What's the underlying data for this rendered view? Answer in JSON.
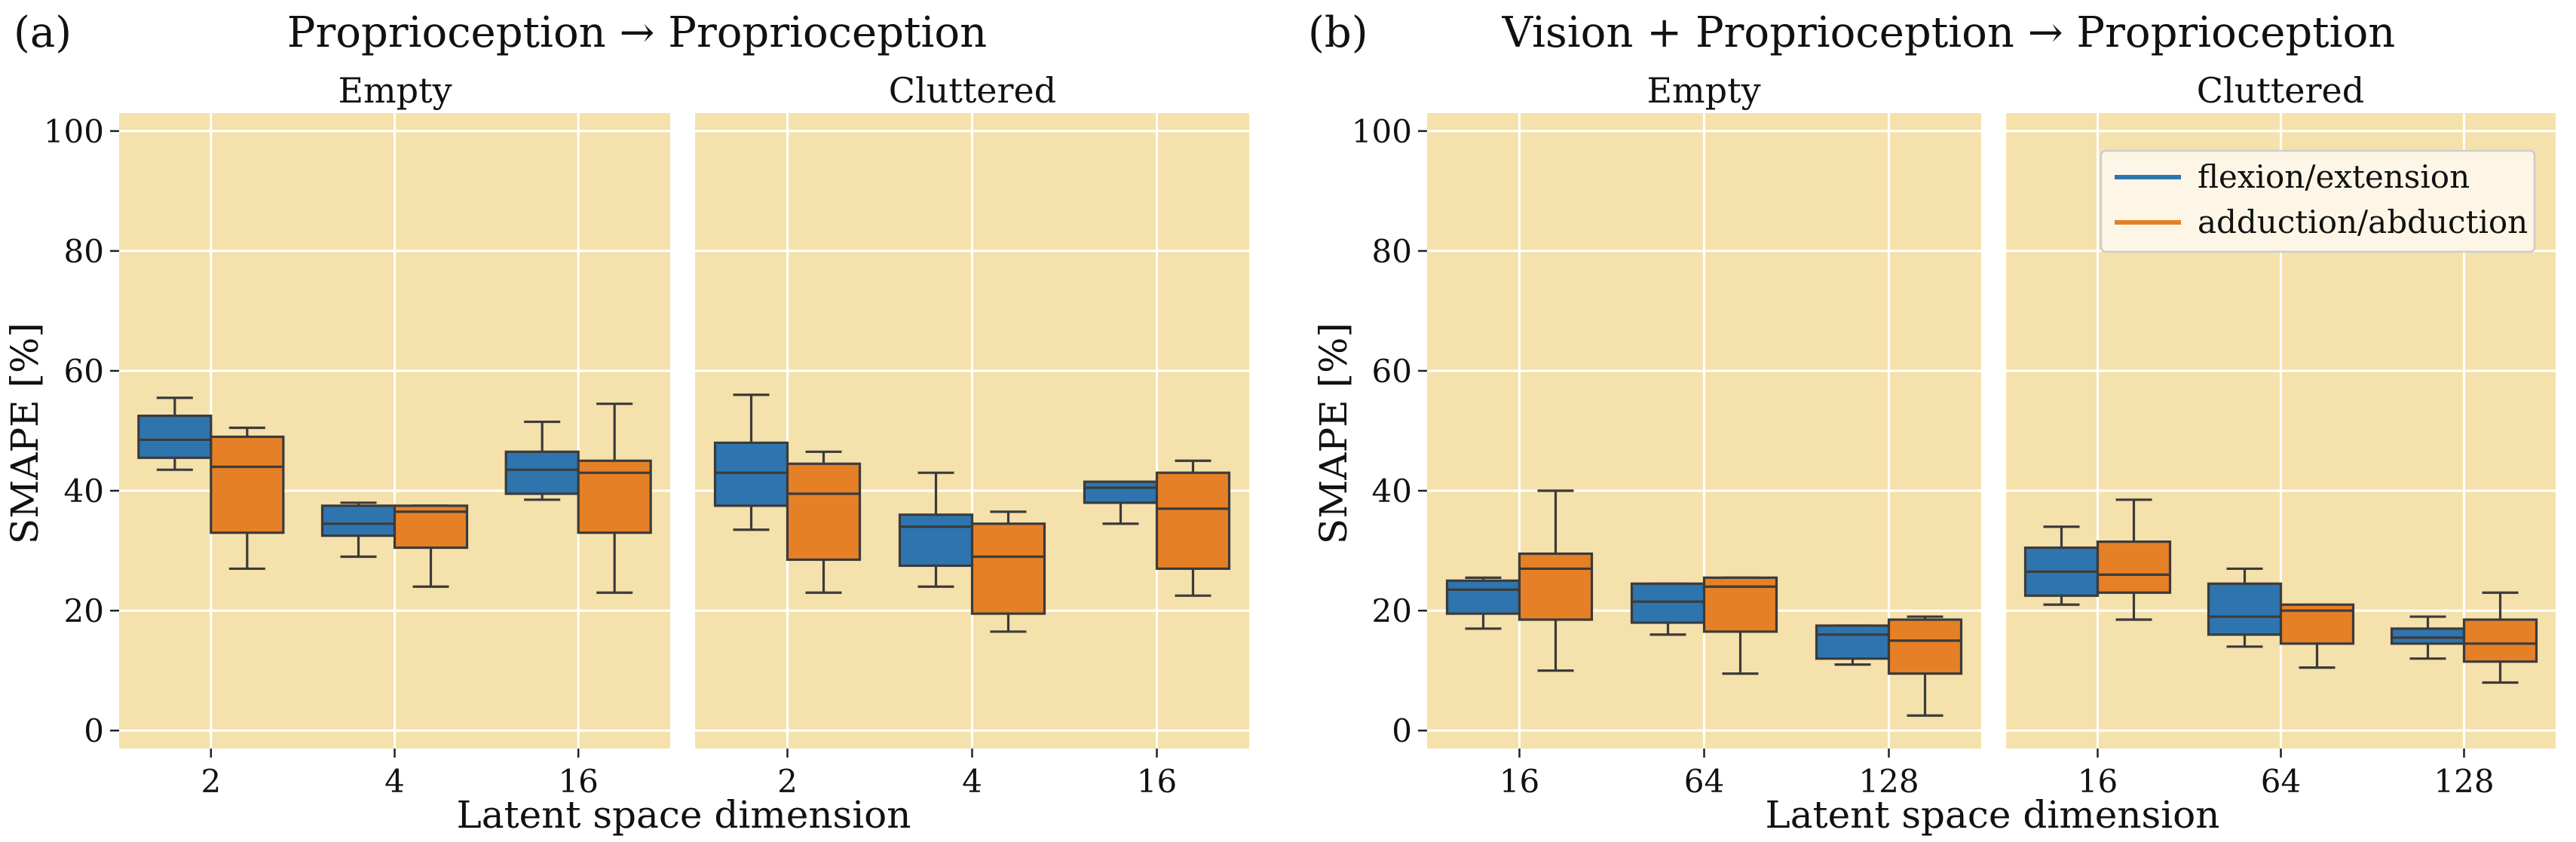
{
  "figure": {
    "panels": [
      {
        "label": "(a)",
        "title": "Proprioception → Proprioception",
        "xlabel": "Latent space dimension",
        "ylabel": "SMAPE [%]"
      },
      {
        "label": "(b)",
        "title": "Vision + Proprioception → Proprioception",
        "xlabel": "Latent space dimension",
        "ylabel": "SMAPE [%]"
      }
    ],
    "legend": [
      {
        "name": "flexion/extension",
        "color": "#2e75b0"
      },
      {
        "name": "adduction/abduction",
        "color": "#e68026"
      }
    ],
    "colors": {
      "background": "#f5e1ab",
      "grid": "#ffffff",
      "box_edge": "#3b3b3b",
      "legend_bg": "#fdf6e6"
    }
  },
  "chart_data": [
    {
      "type": "box",
      "panel": "(a)",
      "subplot": "Empty",
      "categories": [
        "2",
        "4",
        "16"
      ],
      "ylim": [
        -3,
        103
      ],
      "yticks": [
        0,
        20,
        40,
        60,
        80,
        100
      ],
      "grid": true,
      "series": [
        {
          "name": "flexion/extension",
          "boxes": [
            {
              "whislo": 43.5,
              "q1": 45.5,
              "med": 48.5,
              "q3": 52.5,
              "whishi": 55.5
            },
            {
              "whislo": 29,
              "q1": 32.5,
              "med": 34.5,
              "q3": 37.5,
              "whishi": 38
            },
            {
              "whislo": 38.5,
              "q1": 39.5,
              "med": 43.5,
              "q3": 46.5,
              "whishi": 51.5
            }
          ]
        },
        {
          "name": "adduction/abduction",
          "boxes": [
            {
              "whislo": 27,
              "q1": 33,
              "med": 44,
              "q3": 49,
              "whishi": 50.5
            },
            {
              "whislo": 24,
              "q1": 30.5,
              "med": 36.5,
              "q3": 37.5,
              "whishi": 37.5
            },
            {
              "whislo": 23,
              "q1": 33,
              "med": 43,
              "q3": 45,
              "whishi": 54.5
            }
          ]
        }
      ]
    },
    {
      "type": "box",
      "panel": "(a)",
      "subplot": "Cluttered",
      "categories": [
        "2",
        "4",
        "16"
      ],
      "ylim": [
        -3,
        103
      ],
      "yticks": [
        0,
        20,
        40,
        60,
        80,
        100
      ],
      "grid": true,
      "series": [
        {
          "name": "flexion/extension",
          "boxes": [
            {
              "whislo": 33.5,
              "q1": 37.5,
              "med": 43,
              "q3": 48,
              "whishi": 56
            },
            {
              "whislo": 24,
              "q1": 27.5,
              "med": 34,
              "q3": 36,
              "whishi": 43
            },
            {
              "whislo": 34.5,
              "q1": 38,
              "med": 40.5,
              "q3": 41.5,
              "whishi": 41.5
            }
          ]
        },
        {
          "name": "adduction/abduction",
          "boxes": [
            {
              "whislo": 23,
              "q1": 28.5,
              "med": 39.5,
              "q3": 44.5,
              "whishi": 46.5
            },
            {
              "whislo": 16.5,
              "q1": 19.5,
              "med": 29,
              "q3": 34.5,
              "whishi": 36.5
            },
            {
              "whislo": 22.5,
              "q1": 27,
              "med": 37,
              "q3": 43,
              "whishi": 45
            }
          ]
        }
      ]
    },
    {
      "type": "box",
      "panel": "(b)",
      "subplot": "Empty",
      "categories": [
        "16",
        "64",
        "128"
      ],
      "ylim": [
        -3,
        103
      ],
      "yticks": [
        0,
        20,
        40,
        60,
        80,
        100
      ],
      "grid": true,
      "series": [
        {
          "name": "flexion/extension",
          "boxes": [
            {
              "whislo": 17,
              "q1": 19.5,
              "med": 23.5,
              "q3": 25,
              "whishi": 25.5
            },
            {
              "whislo": 16,
              "q1": 18,
              "med": 21.5,
              "q3": 24.5,
              "whishi": 24.5
            },
            {
              "whislo": 11,
              "q1": 12,
              "med": 16,
              "q3": 17.5,
              "whishi": 17.5
            }
          ]
        },
        {
          "name": "adduction/abduction",
          "boxes": [
            {
              "whislo": 10,
              "q1": 18.5,
              "med": 27,
              "q3": 29.5,
              "whishi": 40
            },
            {
              "whislo": 9.5,
              "q1": 16.5,
              "med": 24,
              "q3": 25.5,
              "whishi": 25.5
            },
            {
              "whislo": 2.5,
              "q1": 9.5,
              "med": 15,
              "q3": 18.5,
              "whishi": 19
            }
          ]
        }
      ]
    },
    {
      "type": "box",
      "panel": "(b)",
      "subplot": "Cluttered",
      "categories": [
        "16",
        "64",
        "128"
      ],
      "ylim": [
        -3,
        103
      ],
      "yticks": [
        0,
        20,
        40,
        60,
        80,
        100
      ],
      "grid": true,
      "series": [
        {
          "name": "flexion/extension",
          "boxes": [
            {
              "whislo": 21,
              "q1": 22.5,
              "med": 26.5,
              "q3": 30.5,
              "whishi": 34
            },
            {
              "whislo": 14,
              "q1": 16,
              "med": 19,
              "q3": 24.5,
              "whishi": 27
            },
            {
              "whislo": 12,
              "q1": 14.5,
              "med": 15.5,
              "q3": 17,
              "whishi": 19
            }
          ]
        },
        {
          "name": "adduction/abduction",
          "boxes": [
            {
              "whislo": 18.5,
              "q1": 23,
              "med": 26,
              "q3": 31.5,
              "whishi": 38.5
            },
            {
              "whislo": 10.5,
              "q1": 14.5,
              "med": 20,
              "q3": 21,
              "whishi": 21
            },
            {
              "whislo": 8,
              "q1": 11.5,
              "med": 14.5,
              "q3": 18.5,
              "whishi": 23
            }
          ]
        }
      ]
    }
  ]
}
